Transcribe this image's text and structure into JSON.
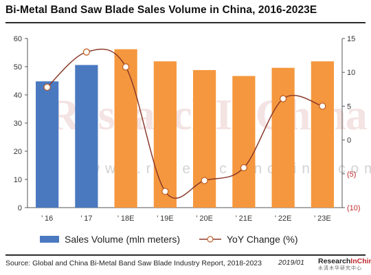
{
  "title": "Bi-Metal Band Saw Blade Sales Volume in China, 2016-2023E",
  "watermark": {
    "text": "ResearchInChina",
    "url": "w w w . r e s e a r c h i n c h i n a . c o m"
  },
  "legend": {
    "bar_label": "Sales Volume (mln meters)",
    "line_label": "YoY Change (%)"
  },
  "source": "Source: Global and China Bi-Metal Band Saw Blade Industry Report, 2018-2023",
  "date": "2019/01",
  "logo": {
    "brand_first": "Research",
    "brand_second": "InChina",
    "subtitle": "水清木华研究中心"
  },
  "colors": {
    "actual_bar": "#4a79c0",
    "forecast_bar": "#f5973e",
    "line": "#8b3a2a",
    "marker_fill": "#ffffff",
    "axis_text": "#333333",
    "right_axis_text": "#c0282d"
  },
  "chart_data": {
    "type": "bar",
    "categories": [
      "’ 16",
      "’ 17",
      "’ 18E",
      "’ 19E",
      "’ 20E",
      "’ 21E",
      "’ 22E",
      "’ 23E"
    ],
    "series": [
      {
        "name": "Sales Volume (mln meters)",
        "type": "bar",
        "axis": "left",
        "values": [
          44.8,
          50.6,
          56.2,
          51.9,
          48.8,
          46.7,
          49.6,
          51.9
        ],
        "forecast_from_index": 2
      },
      {
        "name": "YoY Change (%)",
        "type": "line",
        "axis": "right",
        "values": [
          7.8,
          13.0,
          10.8,
          -7.6,
          -6.0,
          -4.1,
          6.1,
          5.0
        ]
      }
    ],
    "y_left": {
      "min": 0,
      "max": 60,
      "ticks": [
        0,
        10,
        20,
        30,
        40,
        50,
        60
      ],
      "tick_labels": [
        "0",
        "10",
        "20",
        "30",
        "40",
        "50",
        "60"
      ]
    },
    "y_right": {
      "min": -10,
      "max": 15,
      "ticks": [
        15,
        10,
        5,
        0,
        -5,
        -10
      ],
      "tick_labels": [
        "15",
        "10",
        "5",
        "0",
        "(5)",
        "(10)"
      ]
    },
    "grid": false,
    "legend_position": "bottom"
  }
}
